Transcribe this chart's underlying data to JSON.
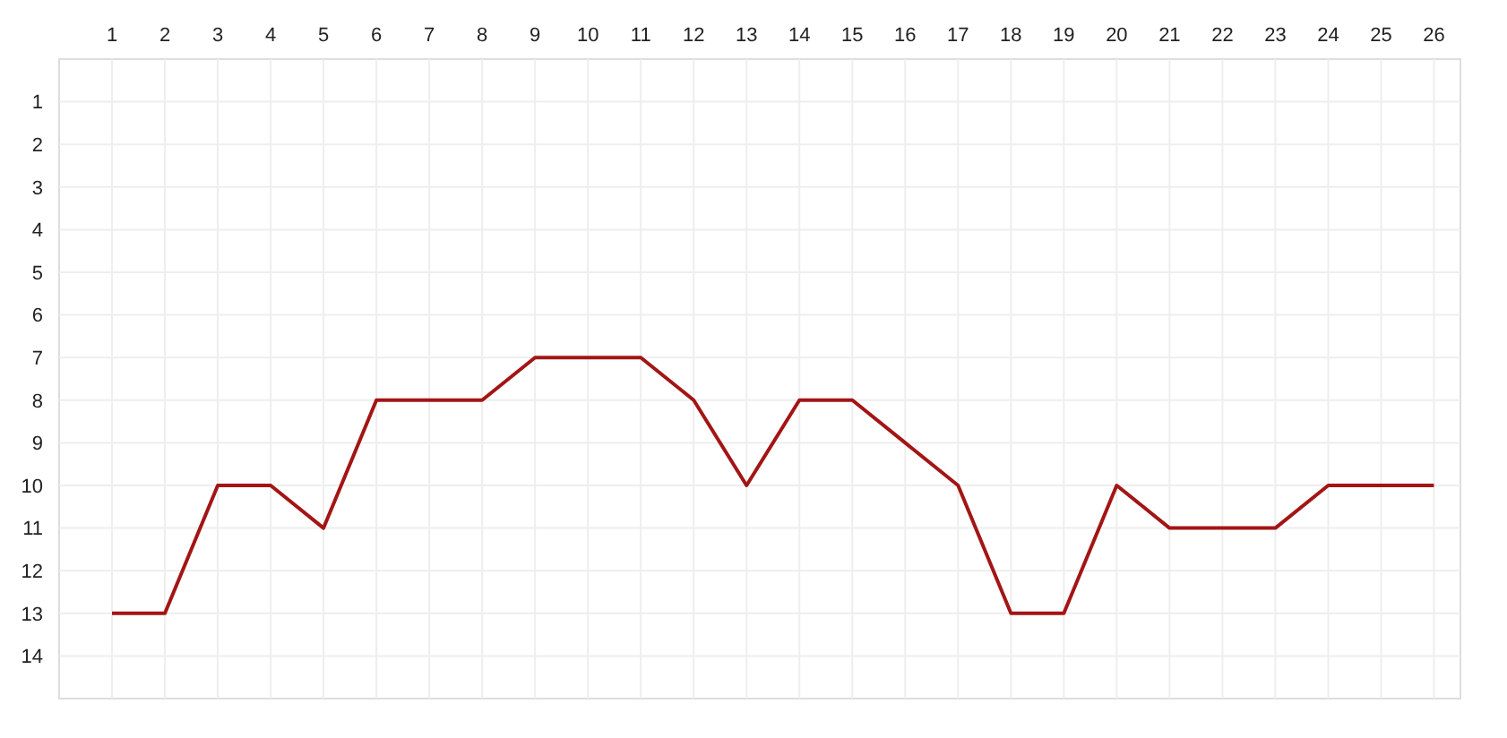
{
  "chart_data": {
    "type": "line",
    "x": [
      1,
      2,
      3,
      4,
      5,
      6,
      7,
      8,
      9,
      10,
      11,
      12,
      13,
      14,
      15,
      16,
      17,
      18,
      19,
      20,
      21,
      22,
      23,
      24,
      25,
      26
    ],
    "series": [
      {
        "color": "#a31515",
        "values": [
          13,
          13,
          10,
          10,
          11,
          8,
          8,
          8,
          7,
          7,
          7,
          8,
          10,
          8,
          8,
          9,
          10,
          13,
          13,
          10,
          11,
          11,
          11,
          10,
          10,
          10
        ]
      }
    ],
    "xlim": [
      0,
      26.5
    ],
    "xticks": [
      1,
      2,
      3,
      4,
      5,
      6,
      7,
      8,
      9,
      10,
      11,
      12,
      13,
      14,
      15,
      16,
      17,
      18,
      19,
      20,
      21,
      22,
      23,
      24,
      25,
      26
    ],
    "ylim": [
      15,
      0
    ],
    "yticks": [
      1,
      2,
      3,
      4,
      5,
      6,
      7,
      8,
      9,
      10,
      11,
      12,
      13,
      14
    ],
    "grid": true,
    "marker": "none",
    "line_style": "solid"
  }
}
